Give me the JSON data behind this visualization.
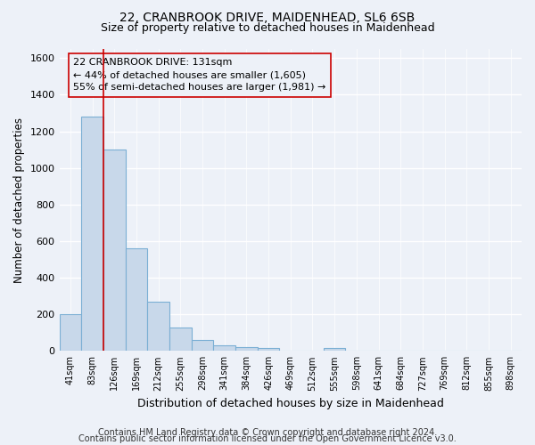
{
  "title": "22, CRANBROOK DRIVE, MAIDENHEAD, SL6 6SB",
  "subtitle": "Size of property relative to detached houses in Maidenhead",
  "xlabel": "Distribution of detached houses by size in Maidenhead",
  "ylabel": "Number of detached properties",
  "bar_labels": [
    "41sqm",
    "83sqm",
    "126sqm",
    "169sqm",
    "212sqm",
    "255sqm",
    "298sqm",
    "341sqm",
    "384sqm",
    "426sqm",
    "469sqm",
    "512sqm",
    "555sqm",
    "598sqm",
    "641sqm",
    "684sqm",
    "727sqm",
    "769sqm",
    "812sqm",
    "855sqm",
    "898sqm"
  ],
  "bar_values": [
    200,
    1280,
    1100,
    560,
    270,
    130,
    60,
    30,
    20,
    15,
    0,
    0,
    15,
    0,
    0,
    0,
    0,
    0,
    0,
    0,
    0
  ],
  "bar_color": "#c8d8ea",
  "bar_edge_color": "#7bafd4",
  "ylim": [
    0,
    1650
  ],
  "yticks": [
    0,
    200,
    400,
    600,
    800,
    1000,
    1200,
    1400,
    1600
  ],
  "property_line_color": "#cc0000",
  "annotation_text": "22 CRANBROOK DRIVE: 131sqm\n← 44% of detached houses are smaller (1,605)\n55% of semi-detached houses are larger (1,981) →",
  "footer_line1": "Contains HM Land Registry data © Crown copyright and database right 2024.",
  "footer_line2": "Contains public sector information licensed under the Open Government Licence v3.0.",
  "bg_color": "#edf1f8",
  "grid_color": "#d8e0ee",
  "title_fontsize": 10,
  "subtitle_fontsize": 9,
  "annotation_fontsize": 8,
  "footer_fontsize": 7,
  "ylabel_fontsize": 8.5,
  "xlabel_fontsize": 9
}
